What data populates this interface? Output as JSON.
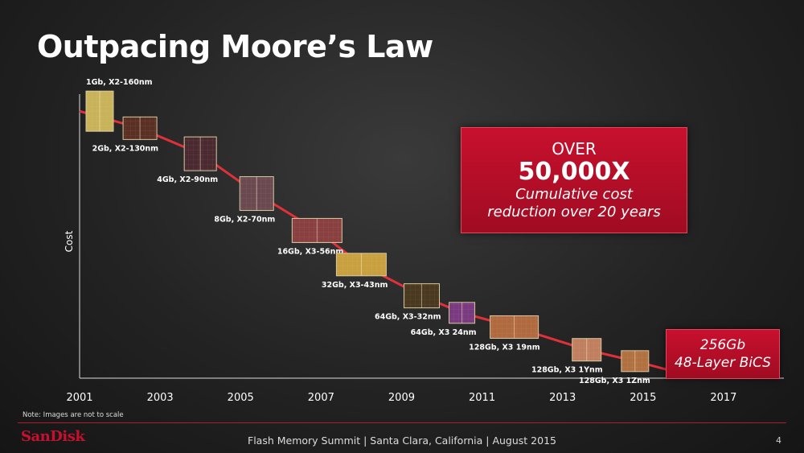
{
  "slide": {
    "title": "Outpacing Moore’s Law",
    "note": "Note: Images are not to scale",
    "footer": "Flash Memory Summit | Santa Clara, California | August 2015",
    "page_number": "4",
    "logo_text": "SanDisk"
  },
  "callout": {
    "line1": "OVER",
    "line2": "50,000X",
    "line3": "Cumulative cost",
    "line4": "reduction over 20 years"
  },
  "bics": {
    "line1": "256Gb",
    "line2": "48-Layer BiCS"
  },
  "chart_data": {
    "type": "line",
    "title": "",
    "xlabel": "",
    "ylabel": "Cost",
    "x_ticks": [
      "2001",
      "2003",
      "2005",
      "2007",
      "2009",
      "2011",
      "2013",
      "2015",
      "2017"
    ],
    "xlim": [
      2001,
      2018.5
    ],
    "y_scale": "unlabeled, decreasing",
    "grid": false,
    "line_color": "#e0303a",
    "series": [
      {
        "points": [
          {
            "x": 2001.0,
            "y": 0.94,
            "label": "1Gb, X2-160nm",
            "color": "#c9b35a"
          },
          {
            "x": 2002.5,
            "y": 0.88,
            "label": "2Gb, X2-130nm",
            "color": "#5a3024"
          },
          {
            "x": 2004.0,
            "y": 0.79,
            "label": "4Gb, X2-90nm",
            "color": "#4a2a30"
          },
          {
            "x": 2005.4,
            "y": 0.65,
            "label": "8Gb, X2-70nm",
            "color": "#6a4a50"
          },
          {
            "x": 2006.9,
            "y": 0.52,
            "label": "16Gb, X3-56nm",
            "color": "#8a4040"
          },
          {
            "x": 2008.0,
            "y": 0.4,
            "label": "32Gb, X3-43nm",
            "color": "#c9a040"
          },
          {
            "x": 2009.5,
            "y": 0.29,
            "label": "64Gb, X3-32nm",
            "color": "#4a3820"
          },
          {
            "x": 2010.5,
            "y": 0.23,
            "label": "64Gb, X3 24nm",
            "color": "#7a3a80"
          },
          {
            "x": 2011.8,
            "y": 0.18,
            "label": "128Gb, X3 19nm",
            "color": "#b06a40"
          },
          {
            "x": 2013.6,
            "y": 0.1,
            "label": "128Gb, X3 1Ynm",
            "color": "#c08060"
          },
          {
            "x": 2014.8,
            "y": 0.06,
            "label": "128Gb, X3 1Znm",
            "color": "#b07040"
          }
        ]
      }
    ],
    "trend_end": {
      "x": 2015.6,
      "y": 0.03
    }
  }
}
